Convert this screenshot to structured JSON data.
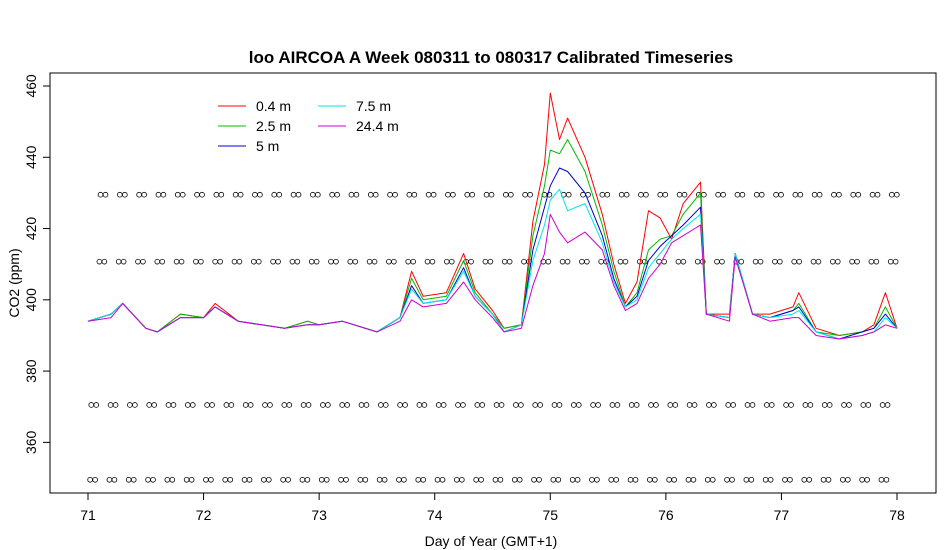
{
  "chart_data": {
    "type": "line",
    "title": "loo AIRCOA A  Week 080311 to 080317  Calibrated Timeseries",
    "xlabel": "Day of Year (GMT+1)",
    "ylabel": "CO2 (ppm)",
    "xlim": [
      71,
      78
    ],
    "ylim": [
      350,
      460
    ],
    "x_ticks": [
      "71",
      "72",
      "73",
      "74",
      "75",
      "76",
      "77",
      "78"
    ],
    "y_ticks": [
      "360",
      "380",
      "400",
      "420",
      "440",
      "460"
    ],
    "legend_position": "top-left",
    "grid": false,
    "series": [
      {
        "name": "0.4 m",
        "color": "#ff0000",
        "points": [
          [
            71.0,
            394
          ],
          [
            71.2,
            396
          ],
          [
            71.3,
            399
          ],
          [
            71.5,
            392
          ],
          [
            71.6,
            391
          ],
          [
            71.8,
            396
          ],
          [
            72.0,
            395
          ],
          [
            72.1,
            399
          ],
          [
            72.3,
            394
          ],
          [
            72.5,
            393
          ],
          [
            72.7,
            392
          ],
          [
            72.9,
            394
          ],
          [
            73.0,
            393
          ],
          [
            73.2,
            394
          ],
          [
            73.5,
            391
          ],
          [
            73.7,
            395
          ],
          [
            73.8,
            408
          ],
          [
            73.9,
            401
          ],
          [
            74.1,
            402
          ],
          [
            74.25,
            413
          ],
          [
            74.35,
            403
          ],
          [
            74.5,
            397
          ],
          [
            74.6,
            392
          ],
          [
            74.75,
            393
          ],
          [
            74.85,
            422
          ],
          [
            74.95,
            438
          ],
          [
            75.0,
            458
          ],
          [
            75.08,
            445
          ],
          [
            75.15,
            451
          ],
          [
            75.3,
            440
          ],
          [
            75.45,
            424
          ],
          [
            75.55,
            410
          ],
          [
            75.65,
            399
          ],
          [
            75.75,
            405
          ],
          [
            75.85,
            425
          ],
          [
            75.95,
            423
          ],
          [
            76.05,
            417
          ],
          [
            76.15,
            427
          ],
          [
            76.3,
            433
          ],
          [
            76.35,
            396
          ],
          [
            76.55,
            396
          ],
          [
            76.6,
            413
          ],
          [
            76.75,
            396
          ],
          [
            76.9,
            396
          ],
          [
            77.1,
            398
          ],
          [
            77.15,
            402
          ],
          [
            77.3,
            392
          ],
          [
            77.5,
            390
          ],
          [
            77.7,
            391
          ],
          [
            77.8,
            393
          ],
          [
            77.9,
            402
          ],
          [
            78.0,
            392
          ]
        ]
      },
      {
        "name": "2.5 m",
        "color": "#00bb00",
        "points": [
          [
            71.0,
            394
          ],
          [
            71.2,
            396
          ],
          [
            71.3,
            399
          ],
          [
            71.5,
            392
          ],
          [
            71.6,
            391
          ],
          [
            71.8,
            396
          ],
          [
            72.0,
            395
          ],
          [
            72.1,
            398
          ],
          [
            72.3,
            394
          ],
          [
            72.5,
            393
          ],
          [
            72.7,
            392
          ],
          [
            72.9,
            394
          ],
          [
            73.0,
            393
          ],
          [
            73.2,
            394
          ],
          [
            73.5,
            391
          ],
          [
            73.7,
            395
          ],
          [
            73.8,
            406
          ],
          [
            73.9,
            400
          ],
          [
            74.1,
            401
          ],
          [
            74.25,
            411
          ],
          [
            74.35,
            402
          ],
          [
            74.5,
            396
          ],
          [
            74.6,
            392
          ],
          [
            74.75,
            393
          ],
          [
            74.85,
            418
          ],
          [
            74.95,
            432
          ],
          [
            75.0,
            442
          ],
          [
            75.08,
            441
          ],
          [
            75.15,
            445
          ],
          [
            75.3,
            436
          ],
          [
            75.45,
            421
          ],
          [
            75.55,
            408
          ],
          [
            75.65,
            398
          ],
          [
            75.75,
            402
          ],
          [
            75.85,
            414
          ],
          [
            75.95,
            417
          ],
          [
            76.05,
            418
          ],
          [
            76.15,
            424
          ],
          [
            76.3,
            430
          ],
          [
            76.35,
            396
          ],
          [
            76.55,
            395
          ],
          [
            76.6,
            413
          ],
          [
            76.75,
            396
          ],
          [
            76.9,
            395
          ],
          [
            77.1,
            397
          ],
          [
            77.15,
            399
          ],
          [
            77.3,
            391
          ],
          [
            77.5,
            390
          ],
          [
            77.7,
            391
          ],
          [
            77.8,
            392
          ],
          [
            77.9,
            398
          ],
          [
            78.0,
            392
          ]
        ]
      },
      {
        "name": "5 m",
        "color": "#0000cc",
        "points": [
          [
            71.0,
            394
          ],
          [
            71.2,
            396
          ],
          [
            71.3,
            399
          ],
          [
            71.5,
            392
          ],
          [
            71.6,
            391
          ],
          [
            71.8,
            395
          ],
          [
            72.0,
            395
          ],
          [
            72.1,
            398
          ],
          [
            72.3,
            394
          ],
          [
            72.5,
            393
          ],
          [
            72.7,
            392
          ],
          [
            72.9,
            393
          ],
          [
            73.0,
            393
          ],
          [
            73.2,
            394
          ],
          [
            73.5,
            391
          ],
          [
            73.7,
            395
          ],
          [
            73.8,
            404
          ],
          [
            73.9,
            399
          ],
          [
            74.1,
            400
          ],
          [
            74.25,
            409
          ],
          [
            74.35,
            401
          ],
          [
            74.5,
            396
          ],
          [
            74.6,
            391
          ],
          [
            74.75,
            393
          ],
          [
            74.85,
            414
          ],
          [
            74.95,
            426
          ],
          [
            75.0,
            432
          ],
          [
            75.08,
            437
          ],
          [
            75.15,
            436
          ],
          [
            75.3,
            430
          ],
          [
            75.45,
            418
          ],
          [
            75.55,
            406
          ],
          [
            75.65,
            398
          ],
          [
            75.75,
            401
          ],
          [
            75.85,
            411
          ],
          [
            75.95,
            415
          ],
          [
            76.05,
            418
          ],
          [
            76.15,
            421
          ],
          [
            76.3,
            426
          ],
          [
            76.35,
            396
          ],
          [
            76.55,
            395
          ],
          [
            76.6,
            413
          ],
          [
            76.75,
            396
          ],
          [
            76.9,
            395
          ],
          [
            77.1,
            397
          ],
          [
            77.15,
            398
          ],
          [
            77.3,
            391
          ],
          [
            77.5,
            389
          ],
          [
            77.7,
            391
          ],
          [
            77.8,
            392
          ],
          [
            77.9,
            396
          ],
          [
            78.0,
            392
          ]
        ]
      },
      {
        "name": "7.5 m",
        "color": "#00e5e5",
        "points": [
          [
            71.0,
            394
          ],
          [
            71.2,
            396
          ],
          [
            71.3,
            399
          ],
          [
            71.5,
            392
          ],
          [
            71.6,
            391
          ],
          [
            71.8,
            395
          ],
          [
            72.0,
            395
          ],
          [
            72.1,
            398
          ],
          [
            72.3,
            394
          ],
          [
            72.5,
            393
          ],
          [
            72.7,
            392
          ],
          [
            72.9,
            393
          ],
          [
            73.0,
            393
          ],
          [
            73.2,
            394
          ],
          [
            73.5,
            391
          ],
          [
            73.7,
            395
          ],
          [
            73.8,
            403
          ],
          [
            73.9,
            399
          ],
          [
            74.1,
            400
          ],
          [
            74.25,
            408
          ],
          [
            74.35,
            401
          ],
          [
            74.5,
            396
          ],
          [
            74.6,
            391
          ],
          [
            74.75,
            393
          ],
          [
            74.85,
            411
          ],
          [
            74.95,
            421
          ],
          [
            75.0,
            428
          ],
          [
            75.08,
            431
          ],
          [
            75.15,
            425
          ],
          [
            75.3,
            427
          ],
          [
            75.45,
            416
          ],
          [
            75.55,
            405
          ],
          [
            75.65,
            398
          ],
          [
            75.75,
            400
          ],
          [
            75.85,
            409
          ],
          [
            75.95,
            413
          ],
          [
            76.05,
            417
          ],
          [
            76.15,
            420
          ],
          [
            76.3,
            424
          ],
          [
            76.35,
            396
          ],
          [
            76.55,
            395
          ],
          [
            76.6,
            413
          ],
          [
            76.75,
            396
          ],
          [
            76.9,
            395
          ],
          [
            77.1,
            396
          ],
          [
            77.15,
            397
          ],
          [
            77.3,
            391
          ],
          [
            77.5,
            389
          ],
          [
            77.7,
            390
          ],
          [
            77.8,
            391
          ],
          [
            77.9,
            395
          ],
          [
            78.0,
            392
          ]
        ]
      },
      {
        "name": "24.4 m",
        "color": "#cc00cc",
        "points": [
          [
            71.0,
            394
          ],
          [
            71.2,
            395
          ],
          [
            71.3,
            399
          ],
          [
            71.5,
            392
          ],
          [
            71.6,
            391
          ],
          [
            71.8,
            395
          ],
          [
            72.0,
            395
          ],
          [
            72.1,
            398
          ],
          [
            72.3,
            394
          ],
          [
            72.5,
            393
          ],
          [
            72.7,
            392
          ],
          [
            72.9,
            393
          ],
          [
            73.0,
            393
          ],
          [
            73.2,
            394
          ],
          [
            73.5,
            391
          ],
          [
            73.7,
            394
          ],
          [
            73.8,
            400
          ],
          [
            73.9,
            398
          ],
          [
            74.1,
            399
          ],
          [
            74.25,
            405
          ],
          [
            74.35,
            400
          ],
          [
            74.5,
            395
          ],
          [
            74.6,
            391
          ],
          [
            74.75,
            392
          ],
          [
            74.85,
            404
          ],
          [
            74.95,
            413
          ],
          [
            75.0,
            424
          ],
          [
            75.08,
            419
          ],
          [
            75.15,
            416
          ],
          [
            75.3,
            419
          ],
          [
            75.45,
            414
          ],
          [
            75.55,
            404
          ],
          [
            75.65,
            397
          ],
          [
            75.75,
            399
          ],
          [
            75.85,
            406
          ],
          [
            75.95,
            410
          ],
          [
            76.05,
            416
          ],
          [
            76.15,
            418
          ],
          [
            76.3,
            421
          ],
          [
            76.35,
            396
          ],
          [
            76.55,
            394
          ],
          [
            76.6,
            412
          ],
          [
            76.75,
            396
          ],
          [
            76.9,
            394
          ],
          [
            77.1,
            395
          ],
          [
            77.15,
            395
          ],
          [
            77.3,
            390
          ],
          [
            77.5,
            389
          ],
          [
            77.7,
            390
          ],
          [
            77.8,
            391
          ],
          [
            77.9,
            393
          ],
          [
            78.0,
            392
          ]
        ]
      }
    ],
    "calibration_markers": {
      "symbol": "o",
      "levels": [
        {
          "y": 429.5,
          "x_start": 71.13,
          "x_end": 78.0,
          "step": 0.167
        },
        {
          "y": 410.7,
          "x_start": 71.12,
          "x_end": 78.0,
          "step": 0.167
        },
        {
          "y": 370.5,
          "x_start": 71.05,
          "x_end": 78.0,
          "step": 0.167
        },
        {
          "y": 349.5,
          "x_start": 71.04,
          "x_end": 78.0,
          "step": 0.167
        }
      ]
    }
  }
}
